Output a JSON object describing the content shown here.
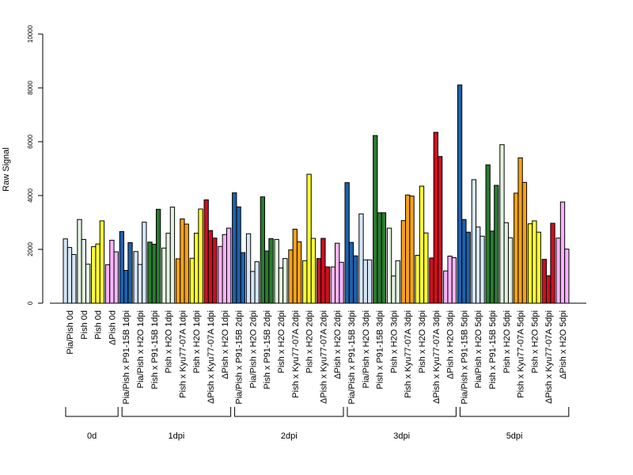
{
  "chart_data": {
    "type": "bar",
    "ylabel": "Raw Signal",
    "ylim": [
      0,
      10000
    ],
    "yticks": [
      0,
      2000,
      4000,
      6000,
      8000,
      10000
    ],
    "categories": [
      "Pia/Pish 0d",
      "Pish 0d",
      "Pish 0d",
      "ΔPish 0d",
      "Pia/Pish x P91-15B 1dpi",
      "Pia/Pish x H2O 1dpi",
      "Pish x P91-15B 1dpi",
      "Pish x H2O 1dpi",
      "Pish x Kyu77-07A 1dpi",
      "Pish x H2O 1dpi",
      "ΔPish x Kyu77-07A 1dpi",
      "ΔPish x H2O 1dpi",
      "Pia/Pish x P91-15B 2dpi",
      "Pia/Pish x H2O 2dpi",
      "Pish x P91-15B 2dpi",
      "Pish x H2O 2dpi",
      "Pish x Kyu77-07A 2dpi",
      "Pish x H2O 2dpi",
      "ΔPish x Kyu77-07A 2dpi",
      "ΔPish x H2O 2dpi",
      "Pia/Pish x P91-15B 3dpi",
      "Pia/Pish x H2O 3dpi",
      "Pish x P91-15B 3dpi",
      "Pish x H2O 3dpi",
      "Pish x Kyu77-07A 3dpi",
      "Pish x H2O 3dpi",
      "ΔPish x Kyu77-07A 3dpi",
      "ΔPish x H2O 3dpi",
      "Pia/Pish x P91-15B 5dpi",
      "Pia/Pish x H2O 5dpi",
      "Pish x P91-15B 5dpi",
      "Pish x H2O 5dpi",
      "Pish x Kyu77-07A 5dpi",
      "Pish x H2O 5dpi",
      "ΔPish x Kyu77-07A 5dpi",
      "ΔPish x H2O 5dpi"
    ],
    "category_colors": [
      "#d6e6f7",
      "#e3f2e0",
      "#ffff33",
      "#f8b4f8",
      "#2060a8",
      "#d6e6f7",
      "#2a7a30",
      "#e3f2e0",
      "#f5a11a",
      "#ffff33",
      "#cc1020",
      "#f8b4f8",
      "#2060a8",
      "#d6e6f7",
      "#2a7a30",
      "#e3f2e0",
      "#f5a11a",
      "#ffff33",
      "#cc1020",
      "#f8b4f8",
      "#2060a8",
      "#d6e6f7",
      "#2a7a30",
      "#e3f2e0",
      "#f5a11a",
      "#ffff33",
      "#cc1020",
      "#f8b4f8",
      "#2060a8",
      "#d6e6f7",
      "#2a7a30",
      "#e3f2e0",
      "#f5a11a",
      "#ffff33",
      "#cc1020",
      "#f8b4f8"
    ],
    "values": [
      [
        2390,
        2070,
        1810
      ],
      [
        3110,
        2370,
        1450
      ],
      [
        2100,
        2200,
        3060
      ],
      [
        1430,
        2340,
        1910
      ],
      [
        2660,
        1220,
        2250
      ],
      [
        1920,
        1440,
        3010
      ],
      [
        2270,
        2190,
        3490
      ],
      [
        2050,
        2600,
        3570
      ],
      [
        1650,
        3130,
        2940
      ],
      [
        1670,
        2600,
        3500
      ],
      [
        3840,
        2700,
        2420
      ],
      [
        2110,
        2550,
        2790
      ],
      [
        4100,
        3580,
        1880
      ],
      [
        2580,
        1180,
        1540
      ],
      [
        3950,
        1940,
        2400
      ],
      [
        2370,
        1310,
        1660
      ],
      [
        1980,
        2750,
        2280
      ],
      [
        1580,
        4790,
        2410
      ],
      [
        1660,
        2410,
        1350
      ],
      [
        1350,
        2230,
        1520
      ],
      [
        4480,
        2260,
        1760
      ],
      [
        3320,
        1610,
        1610
      ],
      [
        6230,
        3360,
        3360
      ],
      [
        2790,
        1010,
        1580
      ],
      [
        3070,
        4020,
        3980
      ],
      [
        1780,
        4350,
        2610
      ],
      [
        1680,
        6350,
        5450
      ],
      [
        1200,
        1750,
        1690
      ],
      [
        8110,
        3110,
        2640
      ],
      [
        4590,
        2830,
        2490
      ],
      [
        5140,
        2680,
        4380
      ],
      [
        5890,
        2990,
        2430
      ],
      [
        4090,
        5400,
        4490
      ],
      [
        2950,
        3060,
        2640
      ],
      [
        1630,
        1020,
        2970
      ],
      [
        2420,
        3760,
        2010
      ]
    ],
    "groups": [
      {
        "label": "0d",
        "start": 0,
        "end": 3
      },
      {
        "label": "1dpi",
        "start": 4,
        "end": 11
      },
      {
        "label": "2dpi",
        "start": 12,
        "end": 19
      },
      {
        "label": "3dpi",
        "start": 20,
        "end": 27
      },
      {
        "label": "5dpi",
        "start": 28,
        "end": 35
      }
    ]
  }
}
